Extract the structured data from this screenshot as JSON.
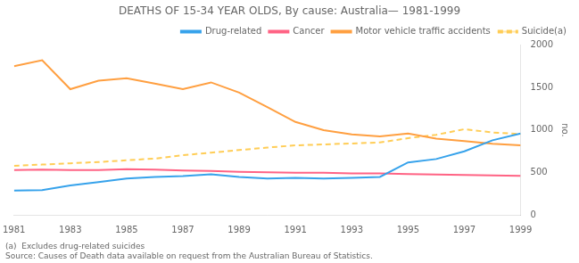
{
  "chart_data": {
    "type": "line",
    "title": "DEATHS OF 15-34 YEAR OLDS, By cause: Australia— 1981-1999",
    "ylabel": "no.",
    "annotations": [
      "(a)  Excludes drug-related suicides",
      "Source: Causes of Death data available on request from the Australian Bureau of Statistics."
    ],
    "x": [
      1981,
      1982,
      1983,
      1984,
      1985,
      1986,
      1987,
      1988,
      1989,
      1990,
      1991,
      1992,
      1993,
      1994,
      1995,
      1996,
      1997,
      1998,
      1999
    ],
    "series": [
      {
        "name": "Drug-related",
        "values": [
          290,
          295,
          350,
          390,
          430,
          450,
          460,
          480,
          450,
          430,
          440,
          430,
          440,
          450,
          620,
          660,
          750,
          880,
          960
        ]
      },
      {
        "name": "Cancer",
        "values": [
          530,
          535,
          530,
          530,
          540,
          535,
          525,
          520,
          510,
          505,
          500,
          498,
          492,
          490,
          483,
          478,
          472,
          468,
          462
        ]
      },
      {
        "name": "Motor vehicle traffic accidents",
        "values": [
          1750,
          1820,
          1480,
          1580,
          1610,
          1545,
          1480,
          1560,
          1440,
          1270,
          1095,
          1000,
          950,
          925,
          960,
          900,
          870,
          840,
          820
        ]
      },
      {
        "name": "Suicide(a)",
        "line_style": "dashed",
        "values": [
          580,
          595,
          610,
          625,
          645,
          665,
          705,
          735,
          765,
          795,
          820,
          832,
          843,
          855,
          905,
          945,
          1010,
          972,
          952
        ]
      }
    ],
    "xlim": [
      1981,
      1999
    ],
    "xticks": [
      1981,
      1983,
      1985,
      1987,
      1989,
      1991,
      1993,
      1995,
      1997,
      1999
    ],
    "ylim": [
      0,
      2000
    ],
    "yticks": [
      0,
      500,
      1000,
      1500,
      2000
    ],
    "grid": false,
    "legend": "upper right"
  }
}
